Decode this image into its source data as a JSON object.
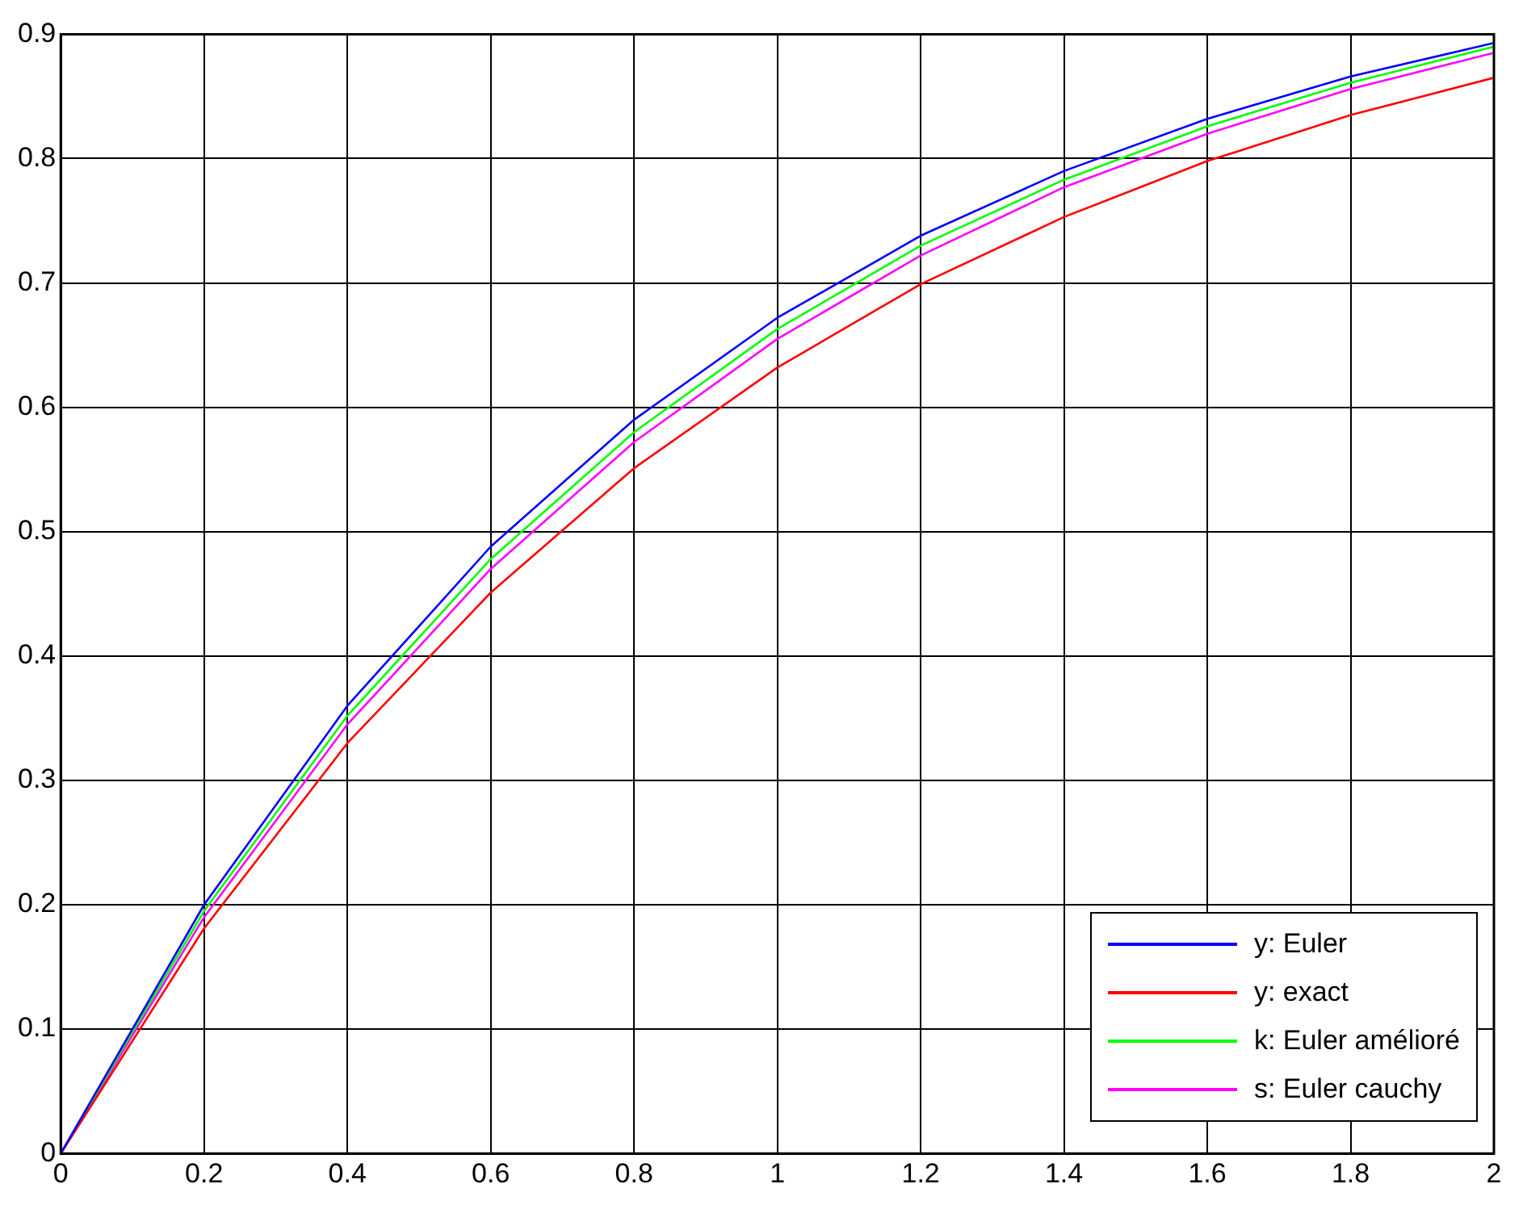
{
  "chart_data": {
    "type": "line",
    "x": [
      0,
      0.2,
      0.4,
      0.6,
      0.8,
      1,
      1.2,
      1.4,
      1.6,
      1.8,
      2
    ],
    "series": [
      {
        "name": "y: Euler",
        "color": "#0000ff",
        "values": [
          0,
          0.2,
          0.36,
          0.488,
          0.59,
          0.672,
          0.738,
          0.79,
          0.832,
          0.866,
          0.893
        ]
      },
      {
        "name": "y: exact",
        "color": "#ff0000",
        "values": [
          0,
          0.181,
          0.33,
          0.451,
          0.551,
          0.632,
          0.699,
          0.753,
          0.798,
          0.835,
          0.865
        ]
      },
      {
        "name": "k: Euler amélioré",
        "color": "#00ff00",
        "values": [
          0,
          0.195,
          0.352,
          0.478,
          0.58,
          0.663,
          0.73,
          0.783,
          0.826,
          0.861,
          0.89
        ]
      },
      {
        "name": "s: Euler cauchy",
        "color": "#ff00ff",
        "values": [
          0,
          0.19,
          0.345,
          0.47,
          0.572,
          0.655,
          0.722,
          0.777,
          0.82,
          0.856,
          0.885
        ]
      }
    ],
    "xlim": [
      0,
      2
    ],
    "xticks": [
      0,
      0.2,
      0.4,
      0.6,
      0.8,
      1,
      1.2,
      1.4,
      1.6,
      1.8,
      2
    ],
    "ylim": [
      0,
      0.9
    ],
    "yticks": [
      0,
      0.1,
      0.2,
      0.3,
      0.4,
      0.5,
      0.6,
      0.7,
      0.8,
      0.9
    ],
    "grid": true,
    "legend": "bottom right",
    "marker": "none",
    "line_style": "solid"
  }
}
